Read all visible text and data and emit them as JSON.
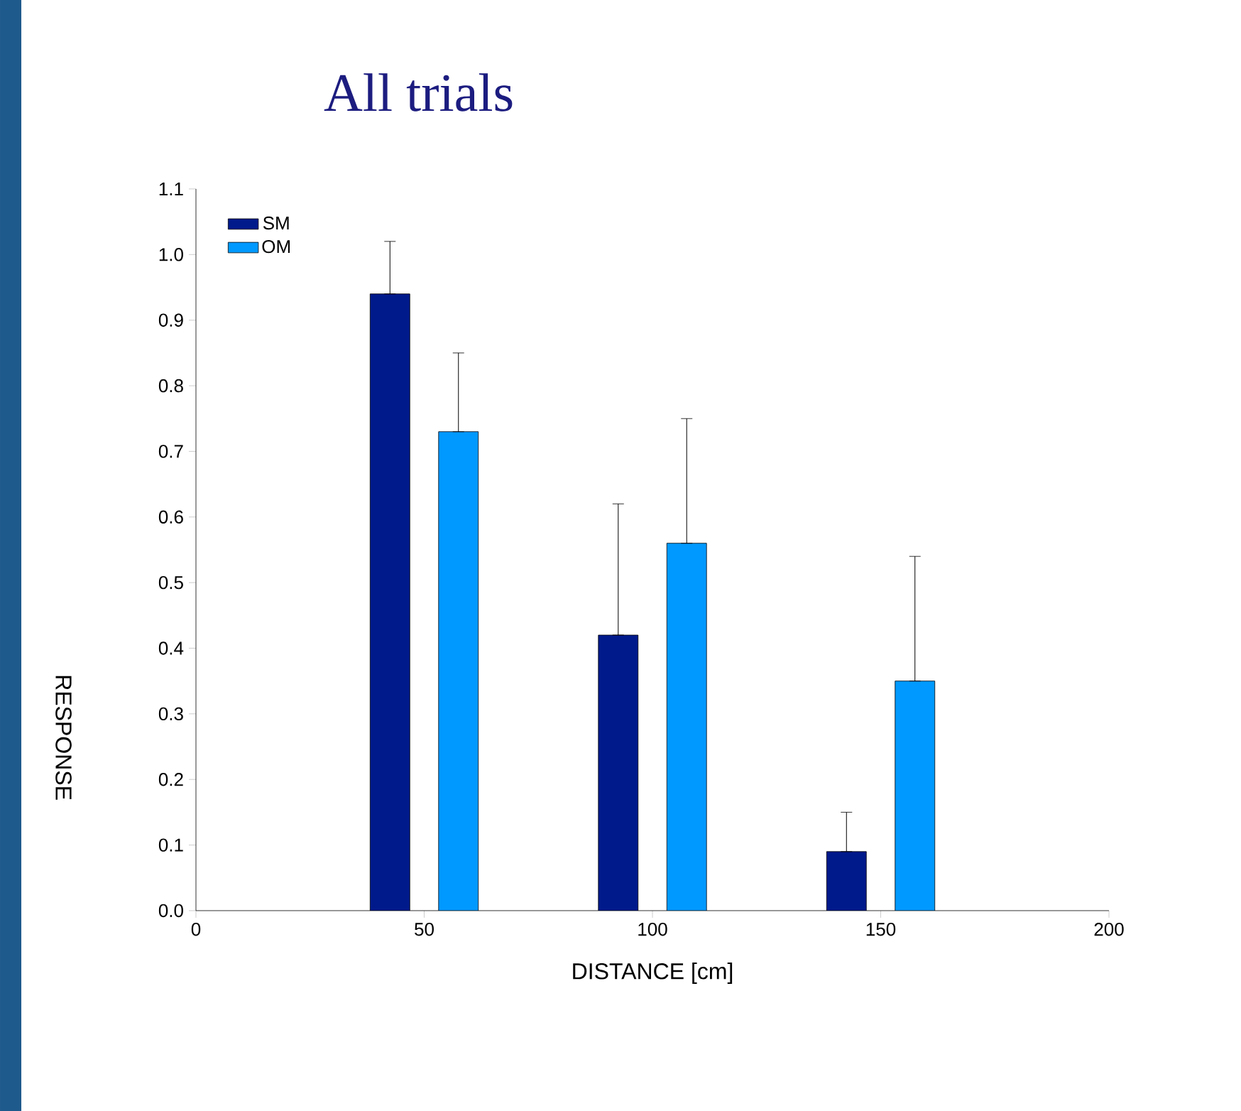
{
  "chart_data": {
    "type": "bar",
    "title": "All trials",
    "xlabel": "DISTANCE [cm]",
    "ylabel": "RESPONSE",
    "xlim": [
      0,
      200
    ],
    "xticks": [
      0,
      50,
      100,
      150,
      200
    ],
    "ylim": [
      0,
      1.1
    ],
    "yticks": [
      {
        "value": 0,
        "label": "0.0"
      },
      {
        "value": 0.1,
        "label": "0.1"
      },
      {
        "value": 0.2,
        "label": "0.2"
      },
      {
        "value": 0.3,
        "label": "0.3"
      },
      {
        "value": 0.4,
        "label": "0.4"
      },
      {
        "value": 0.5,
        "label": "0.5"
      },
      {
        "value": 0.6,
        "label": "0.6"
      },
      {
        "value": 0.7,
        "label": "0.7"
      },
      {
        "value": 0.8,
        "label": "0.8"
      },
      {
        "value": 0.9,
        "label": "0.9"
      },
      {
        "value": 1.0,
        "label": "1.0"
      },
      {
        "value": 1.1,
        "label": "1.1"
      }
    ],
    "legend": "top left",
    "grid": false,
    "series": [
      {
        "name": "SM",
        "color": "#001a8c",
        "x": [
          42.5,
          92.5,
          142.5
        ],
        "values": [
          0.94,
          0.42,
          0.09
        ],
        "errors": [
          [
            0.94,
            1.02
          ],
          [
            0.42,
            0.62
          ],
          [
            0.09,
            0.15
          ]
        ]
      },
      {
        "name": "OM",
        "color": "#0099ff",
        "x": [
          57.5,
          107.5,
          157.5
        ],
        "values": [
          0.73,
          0.56,
          0.35
        ],
        "errors": [
          [
            0.73,
            0.85
          ],
          [
            0.56,
            0.75
          ],
          [
            0.35,
            0.54
          ]
        ]
      }
    ]
  }
}
